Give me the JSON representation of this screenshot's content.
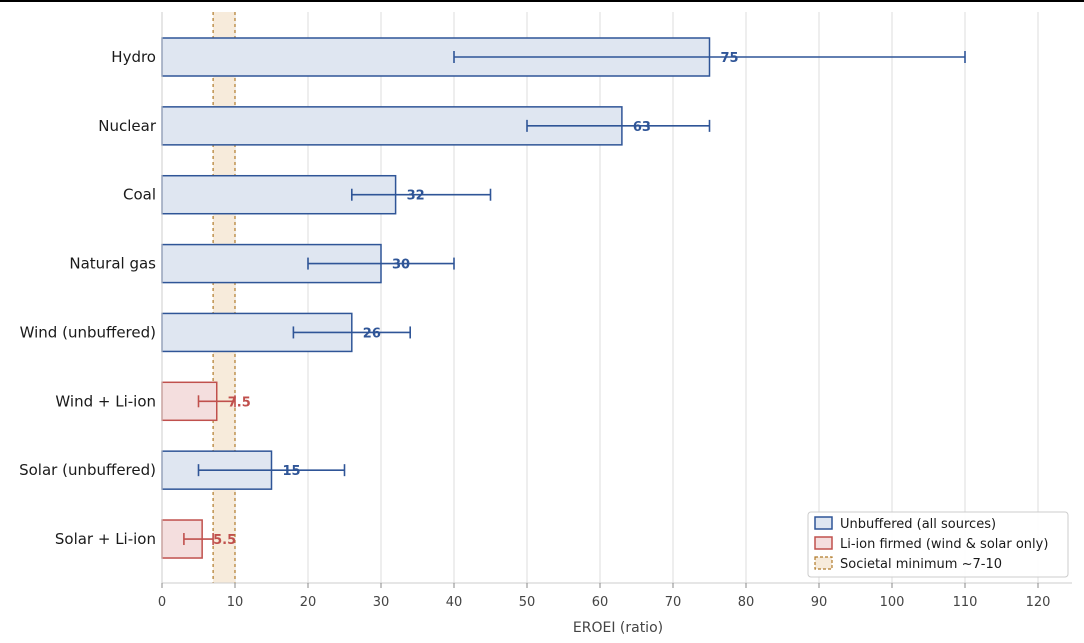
{
  "chart_data": {
    "type": "bar",
    "orientation": "horizontal",
    "xlabel": "EROEI (ratio)",
    "ylabel": "",
    "title": "",
    "xlim": [
      0,
      125
    ],
    "xticks": [
      0,
      10,
      20,
      30,
      40,
      50,
      60,
      70,
      80,
      90,
      100,
      110,
      120
    ],
    "grid": "vertical",
    "categories": [
      "Hydro",
      "Nuclear",
      "Coal",
      "Natural gas",
      "Wind (unbuffered)",
      "Wind + Li-ion",
      "Solar (unbuffered)",
      "Solar + Li-ion"
    ],
    "values": [
      75,
      63,
      32,
      30,
      26,
      7.5,
      15,
      5.5
    ],
    "value_labels": [
      "75",
      "63",
      "32",
      "30",
      "26",
      "7.5",
      "15",
      "5.5"
    ],
    "error_low": [
      40,
      50,
      26,
      20,
      18,
      5,
      5,
      3
    ],
    "error_high": [
      110,
      75,
      45,
      40,
      34,
      10,
      25,
      7
    ],
    "groups": [
      "unbuffered",
      "unbuffered",
      "unbuffered",
      "unbuffered",
      "unbuffered",
      "firmed",
      "unbuffered",
      "firmed"
    ],
    "reference_band": {
      "from": 7,
      "to": 10
    },
    "legend": {
      "placement": "bottom-right",
      "entries": [
        {
          "key": "unbuffered",
          "label": "Unbuffered (all sources)"
        },
        {
          "key": "firmed",
          "label": "Li-ion firmed (wind & solar only)"
        },
        {
          "key": "band",
          "label": "Societal minimum ~7-10"
        }
      ]
    },
    "colors": {
      "unbuffered_fill": "#dfe6f1",
      "unbuffered_edge": "#2f5597",
      "firmed_fill": "#f4dede",
      "firmed_edge": "#c0504d",
      "band_fill": "#f7ebdb",
      "band_edge": "#b07a2a",
      "grid": "#dddddd",
      "axis": "#cccccc"
    }
  }
}
